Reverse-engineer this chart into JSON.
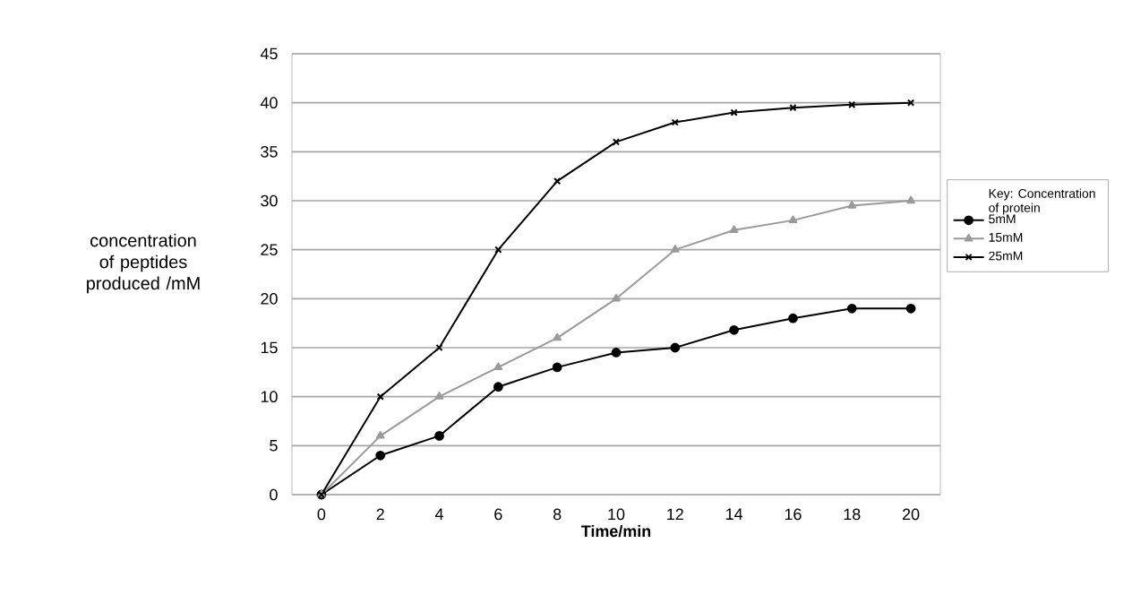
{
  "chart_data": {
    "type": "line",
    "xlabel": "Time/min",
    "ylabel": "concentration of peptides produced /mM",
    "legend_title": "Key: Concentration of protein",
    "x": [
      0,
      2,
      4,
      6,
      8,
      10,
      12,
      14,
      16,
      18,
      20
    ],
    "series": [
      {
        "name": "5mM",
        "color": "#000000",
        "marker": "circle",
        "values": [
          0,
          4,
          6,
          11,
          13,
          14.5,
          15,
          16.8,
          18,
          19,
          19
        ]
      },
      {
        "name": "15mM",
        "color": "#9a9a9a",
        "marker": "triangle",
        "values": [
          0,
          6,
          10,
          13,
          16,
          20,
          25,
          27,
          28,
          29.5,
          30
        ]
      },
      {
        "name": "25mM",
        "color": "#000000",
        "marker": "cross",
        "values": [
          0,
          10,
          15,
          25,
          32,
          36,
          38,
          39,
          39.5,
          39.8,
          40
        ]
      }
    ],
    "xlim": [
      -1,
      21
    ],
    "ylim": [
      0,
      45
    ],
    "xticks": [
      0,
      2,
      4,
      6,
      8,
      10,
      12,
      14,
      16,
      18,
      20
    ],
    "yticks": [
      0,
      5,
      10,
      15,
      20,
      25,
      30,
      35,
      40,
      45
    ],
    "grid": "y",
    "legend": "right",
    "line_style": "solid"
  }
}
